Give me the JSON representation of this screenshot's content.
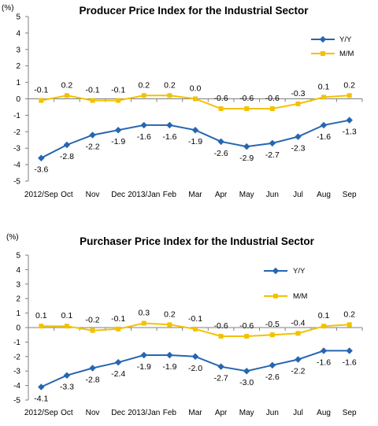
{
  "colors": {
    "yy": "#2666B0",
    "mm": "#F2C200",
    "axis": "#808080"
  },
  "chart_data": [
    {
      "type": "line",
      "title": "Producer Price Index for the Industrial Sector",
      "unit": "(%)",
      "categories": [
        "2012/Sep",
        "Oct",
        "Nov",
        "Dec",
        "2013/Jan",
        "Feb",
        "Mar",
        "Apr",
        "May",
        "Jun",
        "Jul",
        "Aug",
        "Sep"
      ],
      "ylim": [
        -5,
        5
      ],
      "yticks": [
        5,
        4,
        3,
        2,
        1,
        0,
        -1,
        -2,
        -3,
        -4,
        -5
      ],
      "grid": false,
      "legend": "right",
      "series": [
        {
          "name": "Y/Y",
          "values": [
            -3.6,
            -2.8,
            -2.2,
            -1.9,
            -1.6,
            -1.6,
            -1.9,
            -2.6,
            -2.9,
            -2.7,
            -2.3,
            -1.6,
            -1.3
          ],
          "labels": [
            "-3.6",
            "-2.8",
            "-2.2",
            "-1.9",
            "-1.6",
            "-1.6",
            "-1.9",
            "-2.6",
            "-2.9",
            "-2.7",
            "-2.3",
            "-1.6",
            "-1.3"
          ]
        },
        {
          "name": "M/M",
          "values": [
            -0.1,
            0.2,
            -0.1,
            -0.1,
            0.2,
            0.2,
            0.0,
            -0.6,
            -0.6,
            -0.6,
            -0.3,
            0.1,
            0.2
          ],
          "labels": [
            "-0.1",
            "0.2",
            "-0.1",
            "-0.1",
            "0.2",
            "0.2",
            "0.0",
            "-0.6",
            "-0.6",
            "-0.6",
            "-0.3",
            "0.1",
            "0.2"
          ]
        }
      ]
    },
    {
      "type": "line",
      "title": "Purchaser Price Index for the Industrial Sector",
      "unit": "(%)",
      "categories": [
        "2012/Sep",
        "Oct",
        "Nov",
        "Dec",
        "2013/Jan",
        "Feb",
        "Mar",
        "Apr",
        "May",
        "Jun",
        "Jul",
        "Aug",
        "Sep"
      ],
      "ylim": [
        -5,
        5
      ],
      "yticks": [
        5,
        4,
        3,
        2,
        1,
        0,
        -1,
        -2,
        -3,
        -4,
        -5
      ],
      "grid": false,
      "legend": "right",
      "series": [
        {
          "name": "Y/Y",
          "values": [
            -4.1,
            -3.3,
            -2.8,
            -2.4,
            -1.9,
            -1.9,
            -2.0,
            -2.7,
            -3.0,
            -2.6,
            -2.2,
            -1.6,
            -1.6
          ],
          "labels": [
            "-4.1",
            "-3.3",
            "-2.8",
            "-2.4",
            "-1.9",
            "-1.9",
            "-2.0",
            "-2.7",
            "-3.0",
            "-2.6",
            "-2.2",
            "-1.6",
            "-1.6"
          ]
        },
        {
          "name": "M/M",
          "values": [
            0.1,
            0.1,
            -0.2,
            -0.1,
            0.3,
            0.2,
            -0.1,
            -0.6,
            -0.6,
            -0.5,
            -0.4,
            0.1,
            0.2
          ],
          "labels": [
            "0.1",
            "0.1",
            "-0.2",
            "-0.1",
            "0.3",
            "0.2",
            "-0.1",
            "-0.6",
            "-0.6",
            "-0.5",
            "-0.4",
            "0.1",
            "0.2"
          ]
        }
      ]
    }
  ]
}
